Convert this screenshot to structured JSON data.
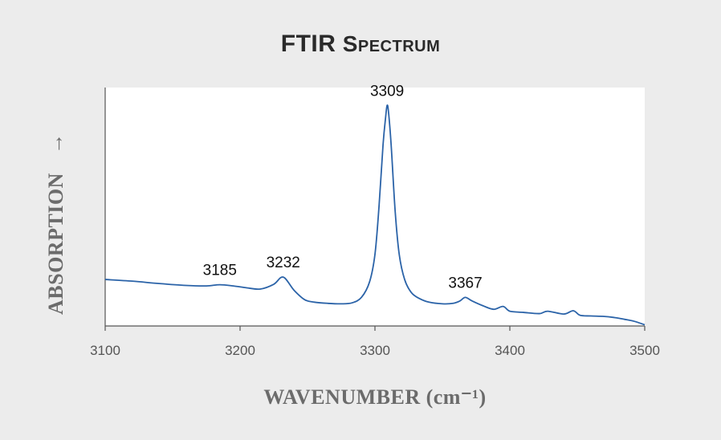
{
  "chart_data": {
    "type": "line",
    "title": "FTIR Spectrum",
    "title_parts": [
      "FTIR",
      "Spectrum"
    ],
    "xlabel": "WAVENUMBER (cm⁻¹)",
    "ylabel": "ABSORPTION",
    "ylabel_arrow": "→",
    "xlim": [
      3100,
      3500
    ],
    "ylim": [
      0,
      1
    ],
    "x_ticks": [
      "3100",
      "3200",
      "3300",
      "3400",
      "3500"
    ],
    "y_ticks_labeled": false,
    "grid": false,
    "colors": {
      "line": "#2b63a8",
      "plot_bg": "#ffffff",
      "page_bg": "#ececec"
    },
    "series": [
      {
        "x": [
          3100,
          3120,
          3140,
          3160,
          3175,
          3185,
          3195,
          3205,
          3215,
          3225,
          3232,
          3240,
          3248,
          3255,
          3265,
          3275,
          3283,
          3290,
          3296,
          3300,
          3303,
          3306,
          3308,
          3309,
          3310,
          3312,
          3315,
          3318,
          3322,
          3327,
          3333,
          3340,
          3350,
          3358,
          3363,
          3367,
          3372,
          3380,
          3388,
          3395,
          3400,
          3410,
          3422,
          3428,
          3440,
          3447,
          3452,
          3460,
          3470,
          3478,
          3485,
          3492,
          3500
        ],
        "y": [
          0.195,
          0.188,
          0.178,
          0.17,
          0.168,
          0.173,
          0.168,
          0.16,
          0.155,
          0.175,
          0.205,
          0.15,
          0.11,
          0.1,
          0.095,
          0.093,
          0.097,
          0.12,
          0.185,
          0.3,
          0.5,
          0.76,
          0.88,
          0.925,
          0.9,
          0.76,
          0.48,
          0.3,
          0.195,
          0.14,
          0.115,
          0.1,
          0.093,
          0.095,
          0.105,
          0.12,
          0.105,
          0.085,
          0.07,
          0.082,
          0.062,
          0.057,
          0.052,
          0.062,
          0.05,
          0.064,
          0.045,
          0.042,
          0.04,
          0.035,
          0.028,
          0.02,
          0.005
        ]
      }
    ],
    "annotations": [
      {
        "label": "3185",
        "x": 3185,
        "y": 0.173
      },
      {
        "label": "3232",
        "x": 3232,
        "y": 0.205
      },
      {
        "label": "3309",
        "x": 3309,
        "y": 0.925
      },
      {
        "label": "3367",
        "x": 3367,
        "y": 0.12
      }
    ]
  }
}
